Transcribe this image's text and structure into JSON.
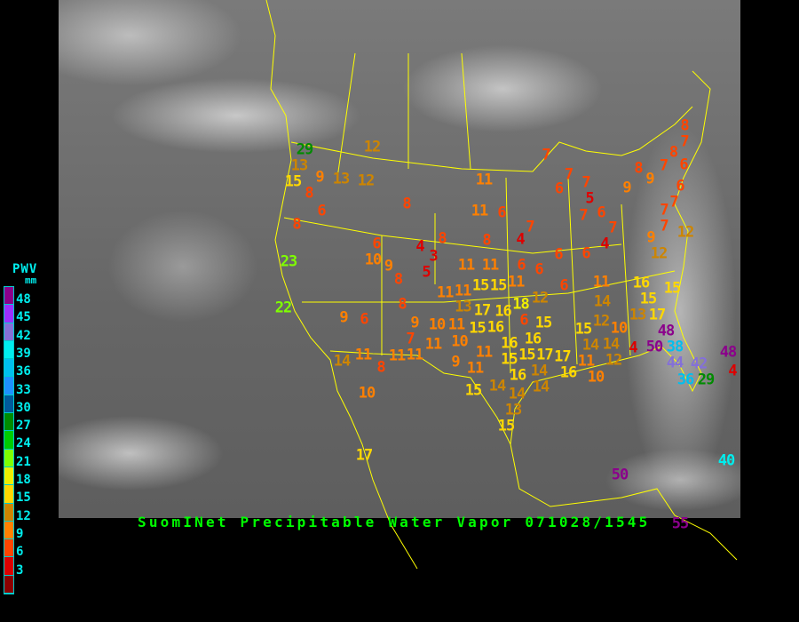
{
  "title": "SuomINet Precipitable Water Vapor 071028/1545",
  "legend": {
    "title": "PWV",
    "unit": "mm",
    "labels": [
      "48",
      "45",
      "42",
      "39",
      "36",
      "33",
      "30",
      "27",
      "24",
      "21",
      "18",
      "15",
      "12",
      "9",
      "6",
      "3"
    ],
    "colors": [
      "#8b008b",
      "#9b30ff",
      "#8470d8",
      "#00eeee",
      "#00bfee",
      "#1e90ff",
      "#005a9c",
      "#008b00",
      "#00cd00",
      "#7fff00",
      "#eeee00",
      "#ffd700",
      "#cd8500",
      "#ff8000",
      "#ff4500",
      "#dd0000",
      "#8b0000"
    ]
  },
  "stations": [
    29,
    13,
    15,
    9,
    13,
    12,
    8,
    6,
    8,
    12,
    23,
    22,
    8,
    11,
    11,
    6,
    8,
    8,
    4,
    7,
    4,
    3,
    5,
    6,
    10,
    9,
    8,
    11,
    11,
    6,
    6,
    6,
    6,
    4,
    7,
    7,
    6,
    5,
    6,
    7,
    7,
    7,
    8,
    9,
    9,
    7,
    8,
    6,
    7,
    8,
    6,
    7,
    7,
    7,
    12,
    9,
    12,
    9,
    6,
    8,
    9,
    7,
    10,
    11,
    15,
    16,
    11,
    14,
    11,
    8,
    11,
    11,
    10,
    9,
    11,
    11,
    15,
    16,
    16,
    6,
    15,
    16,
    15,
    15,
    16,
    14,
    14,
    15,
    14,
    14,
    13,
    15,
    10,
    13,
    17,
    18,
    12,
    11,
    11,
    15,
    15,
    11,
    17,
    17,
    16,
    6,
    11,
    16,
    15,
    15,
    14,
    13,
    17,
    12,
    14,
    10,
    48,
    50,
    38,
    44,
    42,
    36,
    29,
    48,
    4,
    14,
    12,
    4,
    11,
    10,
    17,
    50,
    40,
    55
  ]
}
